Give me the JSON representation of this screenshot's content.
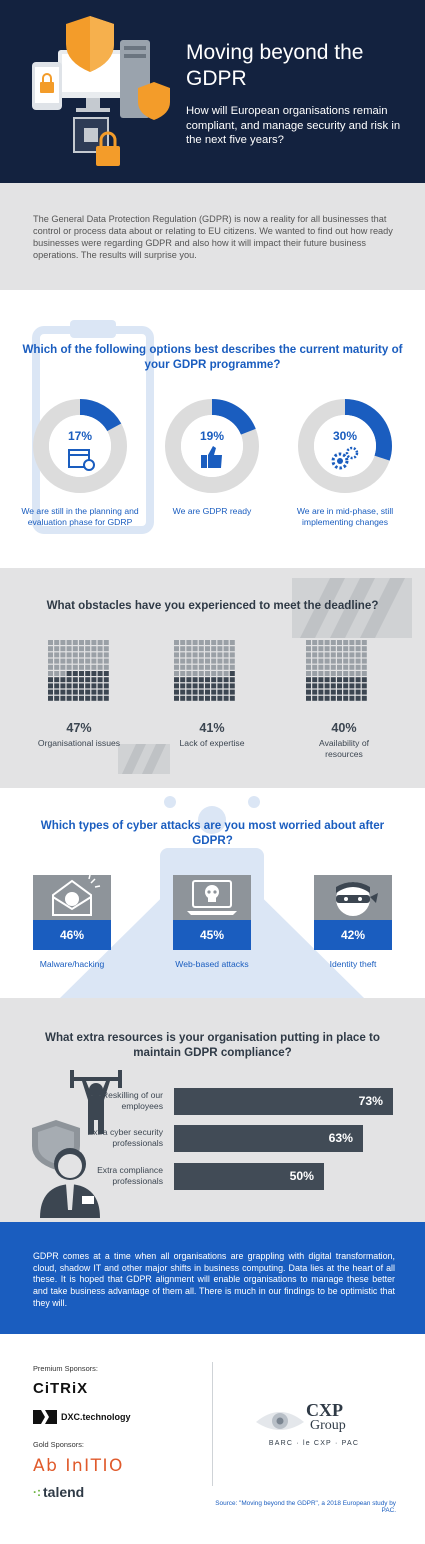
{
  "header": {
    "title": "Moving beyond the GDPR",
    "subtitle": "How will European organisations remain compliant, and manage security and risk in the next five years?"
  },
  "intro": {
    "text": "The General Data Protection Regulation (GDPR) is now a reality for all businesses that control or process data about or relating to EU citizens. We wanted to find out how ready businesses were regarding GDPR and also how it will impact their future business operations. The results will surprise you."
  },
  "maturity": {
    "question": "Which of the following options best describes the current maturity of your GDPR programme?",
    "items": [
      {
        "value": 17,
        "label": "17%",
        "text": "We are still in the planning and evaluation phase for GDRP",
        "icon": "calendar-icon"
      },
      {
        "value": 19,
        "label": "19%",
        "text": "We are GDPR ready",
        "icon": "thumbs-up-icon"
      },
      {
        "value": 30,
        "label": "30%",
        "text": "We are in mid-phase, still implementing changes",
        "icon": "gears-icon"
      }
    ],
    "colors": {
      "filled": "#1a5dbf",
      "track": "#dcdcdc"
    }
  },
  "obstacles": {
    "question": "What obstacles have you experienced to meet the deadline?",
    "items": [
      {
        "value": 47,
        "label": "47%",
        "text": "Organisational issues"
      },
      {
        "value": 41,
        "label": "41%",
        "text": "Lack of expertise"
      },
      {
        "value": 40,
        "label": "40%",
        "text": "Availability of resources"
      }
    ],
    "colors": {
      "filled": "#3c4651",
      "empty": "#9aa0a6"
    }
  },
  "attacks": {
    "question": "Which types of cyber attacks are you most worried about after GDPR?",
    "items": [
      {
        "label": "46%",
        "text": "Malware/hacking",
        "icon": "infected-envelope-icon"
      },
      {
        "label": "45%",
        "text": "Web-based attacks",
        "icon": "skull-laptop-icon"
      },
      {
        "label": "42%",
        "text": "Identity theft",
        "icon": "masked-thief-icon"
      }
    ]
  },
  "resources": {
    "question": "What extra resources is your organisation putting in place to maintain GDPR compliance?",
    "items": [
      {
        "value": 73,
        "label": "73%",
        "text": "Reskilling of our employees"
      },
      {
        "value": 63,
        "label": "63%",
        "text": "Extra cyber security professionals"
      },
      {
        "value": 50,
        "label": "50%",
        "text": "Extra compliance professionals"
      }
    ]
  },
  "conclusion": {
    "text": "GDPR comes at a time when all organisations are grappling with digital transformation, cloud, shadow IT and other major shifts in business computing. Data lies at the heart of all these. It is hoped that GDPR alignment will enable organisations to manage these better and take business advantage of them all. There is much in our findings to be optimistic that they will."
  },
  "sponsors": {
    "premium_heading": "Premium Sponsors:",
    "premium": [
      "CiTRiX",
      "DXC.technology"
    ],
    "gold_heading": "Gold Sponsors:",
    "gold": [
      "Ab InITIO",
      "talend"
    ],
    "cxp_name_1": "CXP",
    "cxp_name_2": "Group",
    "cxp_tagline": "BARC · le CXP · PAC",
    "source": "Source: \"Moving beyond the GDPR\", a 2018 European study by PAC."
  }
}
